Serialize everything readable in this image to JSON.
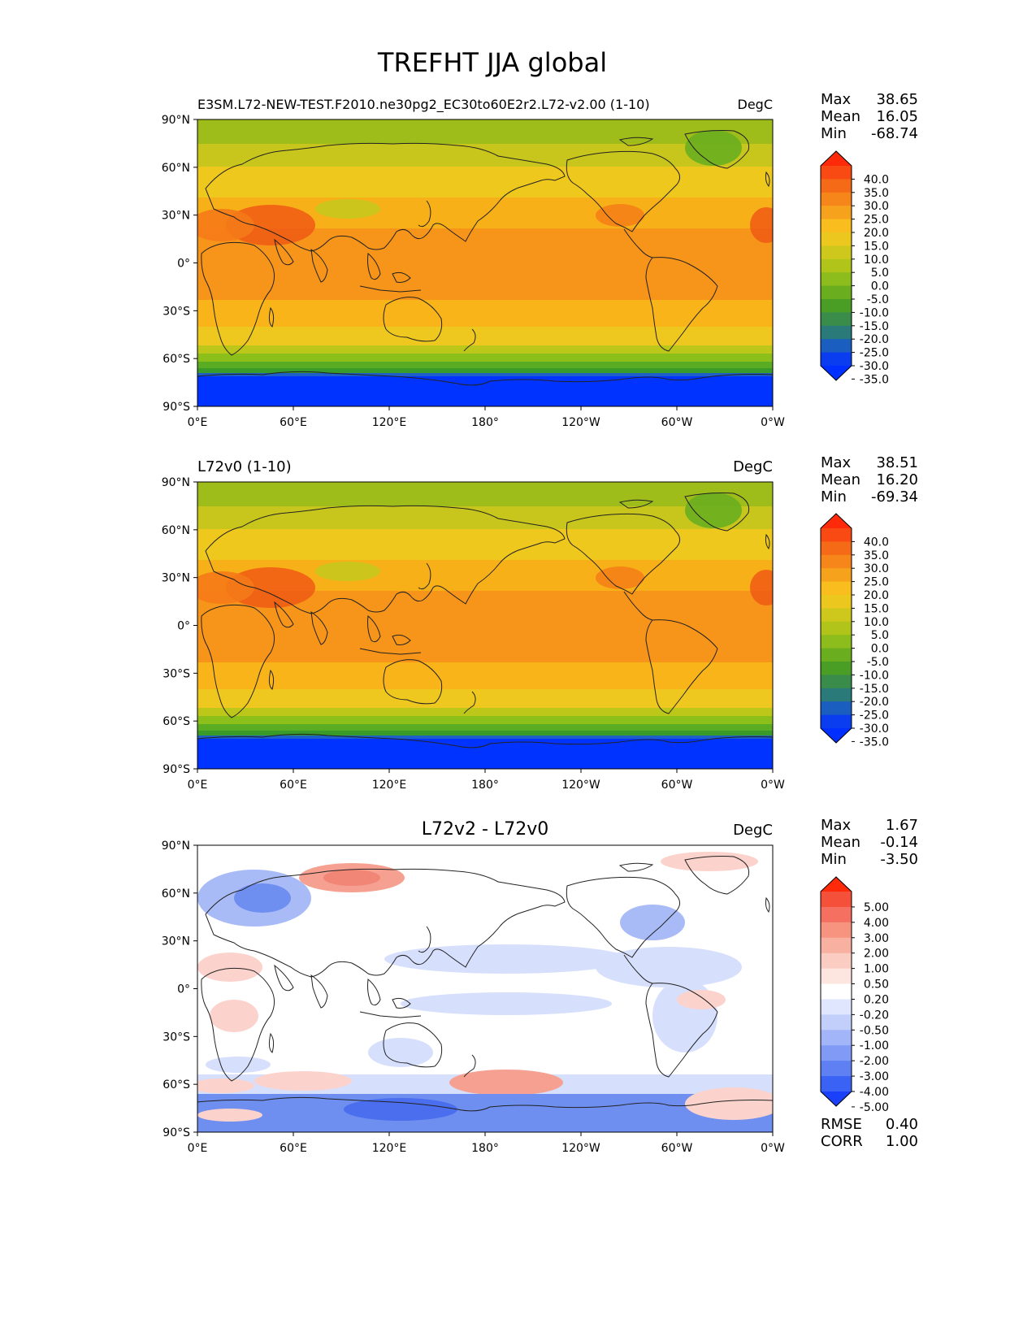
{
  "figure": {
    "title": "TREFHT JJA global"
  },
  "axes": {
    "lon_ticks": [
      "0°E",
      "60°E",
      "120°E",
      "180°",
      "120°W",
      "60°W",
      "0°W"
    ],
    "lat_ticks": [
      "90°N",
      "60°N",
      "30°N",
      "0°",
      "30°S",
      "60°S",
      "90°S"
    ]
  },
  "stat_labels": {
    "max": "Max",
    "mean": "Mean",
    "min": "Min",
    "rmse": "RMSE",
    "corr": "CORR"
  },
  "colors": {
    "ice": "#0033ff",
    "polar_edge": "#1e5fc8",
    "cold_green": "#3a9a2a",
    "green": "#5aac22",
    "olive": "#8cbf1a",
    "yellow_green": "#bcc71a",
    "yellow": "#eec81e",
    "light_orange": "#f8b418",
    "orange": "#f7941a",
    "dark_orange": "#f57a18",
    "red_orange": "#f05a14",
    "diff_white": "#ffffff",
    "diff_light_blue": "#d6dffc",
    "diff_blue": "#a9bbf7",
    "diff_mid_blue": "#6e8ef0",
    "diff_light_red": "#fbd3cc",
    "diff_red": "#f5a090",
    "coast": "#222222"
  },
  "panels": [
    {
      "id": "test",
      "left_title": "E3SM.L72-NEW-TEST.F2010.ne30pg2_EC30to60E2r2.L72-v2.00 (1-10)",
      "center_title": "",
      "right_title": "DegC",
      "stats": {
        "max": "38.65",
        "mean": "16.05",
        "min": "-68.74"
      },
      "colorbar_levels": [
        "40.0",
        "35.0",
        "30.0",
        "25.0",
        "20.0",
        "15.0",
        "10.0",
        "5.0",
        "0.0",
        "-5.0",
        "-10.0",
        "-15.0",
        "-20.0",
        "-25.0",
        "-30.0",
        "-35.0"
      ],
      "colorbar_colors": [
        "#ff2a0a",
        "#f84a12",
        "#f56a16",
        "#f6861a",
        "#f7a21c",
        "#f9bd1e",
        "#ecc81e",
        "#cfc81c",
        "#b0c41a",
        "#8cbd1c",
        "#6aae20",
        "#4a9e26",
        "#3a8c4a",
        "#2a7a7a",
        "#1a5fc0",
        "#0a3cf0",
        "#0030ff"
      ]
    },
    {
      "id": "ref",
      "left_title": "L72v0 (1-10)",
      "center_title": "",
      "right_title": "DegC",
      "stats": {
        "max": "38.51",
        "mean": "16.20",
        "min": "-69.34"
      },
      "colorbar_levels": [
        "40.0",
        "35.0",
        "30.0",
        "25.0",
        "20.0",
        "15.0",
        "10.0",
        "5.0",
        "0.0",
        "-5.0",
        "-10.0",
        "-15.0",
        "-20.0",
        "-25.0",
        "-30.0",
        "-35.0"
      ],
      "colorbar_colors": [
        "#ff2a0a",
        "#f84a12",
        "#f56a16",
        "#f6861a",
        "#f7a21c",
        "#f9bd1e",
        "#ecc81e",
        "#cfc81c",
        "#b0c41a",
        "#8cbd1c",
        "#6aae20",
        "#4a9e26",
        "#3a8c4a",
        "#2a7a7a",
        "#1a5fc0",
        "#0a3cf0",
        "#0030ff"
      ]
    },
    {
      "id": "diff",
      "left_title": "",
      "center_title": "L72v2 - L72v0",
      "right_title": "DegC",
      "stats": {
        "max": "1.67",
        "mean": "-0.14",
        "min": "-3.50"
      },
      "rmse": "0.40",
      "corr": "1.00",
      "colorbar_levels": [
        "5.00",
        "4.00",
        "3.00",
        "2.00",
        "1.00",
        "0.50",
        "0.20",
        "-0.20",
        "-0.50",
        "-1.00",
        "-2.00",
        "-3.00",
        "-4.00",
        "-5.00"
      ],
      "colorbar_colors": [
        "#ff2a0a",
        "#f4503a",
        "#f57060",
        "#f79480",
        "#f8b0a0",
        "#fbcdc2",
        "#fde6e0",
        "#ffffff",
        "#dfe6fd",
        "#c2cffb",
        "#a2b5f8",
        "#809af5",
        "#5e80f3",
        "#3a62f5",
        "#1a40fa"
      ]
    }
  ]
}
